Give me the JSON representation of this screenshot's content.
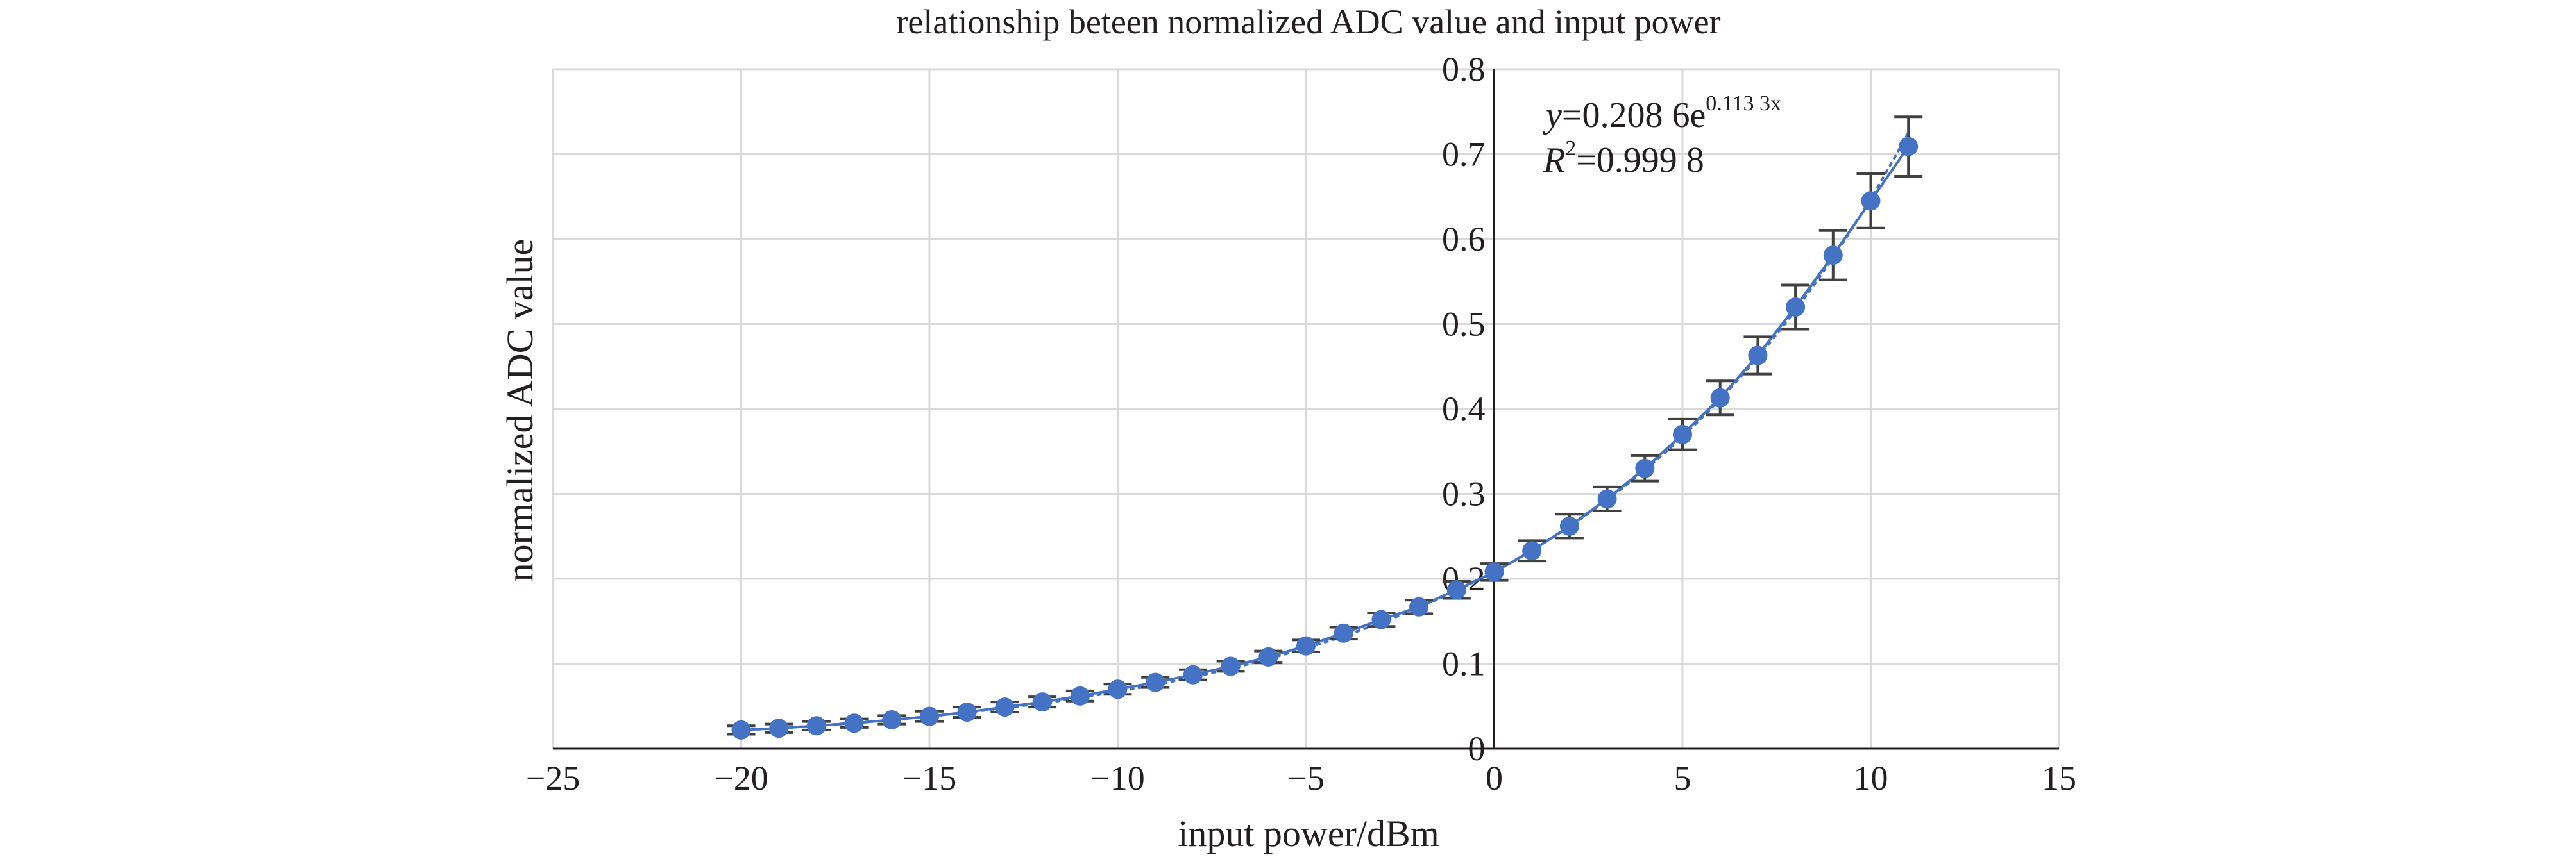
{
  "chart_data": {
    "type": "scatter",
    "title": "relationship beteen normalized ADC value and input power",
    "xlabel": "input power/dBm",
    "ylabel": "normalized ADC value",
    "xlim": [
      -25,
      15
    ],
    "ylim": [
      0,
      0.8
    ],
    "x_ticks": [
      "−25",
      "−20",
      "−15",
      "−10",
      "−5",
      "0",
      "5",
      "10",
      "15"
    ],
    "y_ticks": [
      "0",
      "0.1",
      "0.2",
      "0.3",
      "0.4",
      "0.5",
      "0.6",
      "0.7",
      "0.8"
    ],
    "grid": true,
    "legend": "none",
    "series": [
      {
        "x": [
          -20,
          -19,
          -18,
          -17,
          -16,
          -15,
          -14,
          -13,
          -12,
          -11,
          -10,
          -9,
          -8,
          -7,
          -6,
          -5,
          -4,
          -3,
          -2,
          -1,
          0,
          1,
          2,
          3,
          4,
          5,
          6,
          7,
          8,
          9,
          10,
          11
        ],
        "y": [
          0.022,
          0.024,
          0.027,
          0.03,
          0.034,
          0.038,
          0.043,
          0.049,
          0.055,
          0.062,
          0.07,
          0.078,
          0.087,
          0.097,
          0.108,
          0.121,
          0.136,
          0.152,
          0.167,
          0.187,
          0.208,
          0.233,
          0.262,
          0.294,
          0.33,
          0.37,
          0.413,
          0.463,
          0.52,
          0.581,
          0.645,
          0.709
        ],
        "error": [
          0.005,
          0.005,
          0.005,
          0.005,
          0.005,
          0.006,
          0.006,
          0.006,
          0.006,
          0.006,
          0.006,
          0.006,
          0.006,
          0.006,
          0.007,
          0.007,
          0.007,
          0.008,
          0.008,
          0.01,
          0.01,
          0.012,
          0.014,
          0.014,
          0.015,
          0.018,
          0.02,
          0.022,
          0.026,
          0.029,
          0.032,
          0.035
        ],
        "color": "#4472c4"
      }
    ],
    "trendline": {
      "type": "exponential",
      "coefficient": 0.2086,
      "exponent": 0.1133,
      "style": "dotted",
      "equation_prefix": "y",
      "equation_main": "=0.208 6e",
      "equation_exponent": "0.113 3x",
      "r2_prefix": "R",
      "r2_sup": "2",
      "r2_value": "=0.999 8"
    }
  }
}
